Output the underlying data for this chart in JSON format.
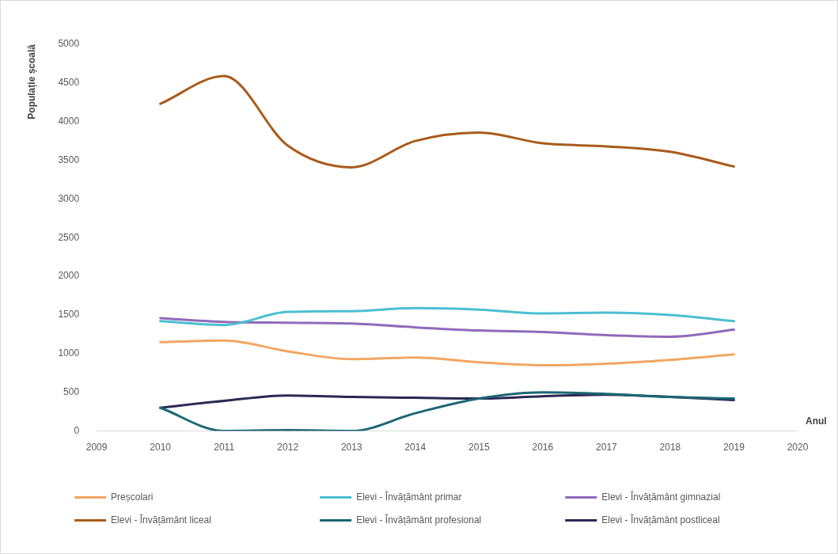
{
  "chart_data": {
    "type": "line",
    "xlabel": "Anul",
    "ylabel": "Populație școală",
    "x": [
      2010,
      2011,
      2012,
      2013,
      2014,
      2015,
      2016,
      2017,
      2018,
      2019
    ],
    "xlim": [
      2009,
      2020
    ],
    "xticks": [
      2009,
      2010,
      2011,
      2012,
      2013,
      2014,
      2015,
      2016,
      2017,
      2018,
      2019,
      2020
    ],
    "ylim": [
      0,
      5000
    ],
    "yticks": [
      0,
      500,
      1000,
      1500,
      2000,
      2500,
      3000,
      3500,
      4000,
      4500,
      5000
    ],
    "legend": "bottom",
    "marker": "none",
    "line_style": "solid",
    "series": [
      {
        "name": "Preșcolari",
        "color": "#f2a663",
        "values": [
          1150,
          1170,
          1030,
          930,
          950,
          890,
          850,
          870,
          920,
          990
        ]
      },
      {
        "name": "Elevi - Învățământ primar",
        "color": "#4bbfd2",
        "values": [
          1420,
          1370,
          1540,
          1550,
          1590,
          1570,
          1520,
          1530,
          1500,
          1420
        ]
      },
      {
        "name": "Elevi - Învățământ gimnazial",
        "color": "#8e6bbb",
        "values": [
          1460,
          1410,
          1400,
          1390,
          1340,
          1300,
          1280,
          1240,
          1220,
          1310
        ]
      },
      {
        "name": "Elevi - Învățământ liceal",
        "color": "#a85c1c",
        "values": [
          4230,
          4590,
          3690,
          3410,
          3750,
          3860,
          3720,
          3680,
          3610,
          3420
        ]
      },
      {
        "name": "Elevi - Învățământ profesional",
        "color": "#1d6673",
        "values": [
          300,
          0,
          10,
          0,
          230,
          420,
          500,
          480,
          440,
          420
        ]
      },
      {
        "name": "Elevi - Învățământ postliceal",
        "color": "#2b2852",
        "values": [
          300,
          390,
          460,
          440,
          430,
          420,
          450,
          470,
          440,
          400
        ]
      }
    ]
  }
}
